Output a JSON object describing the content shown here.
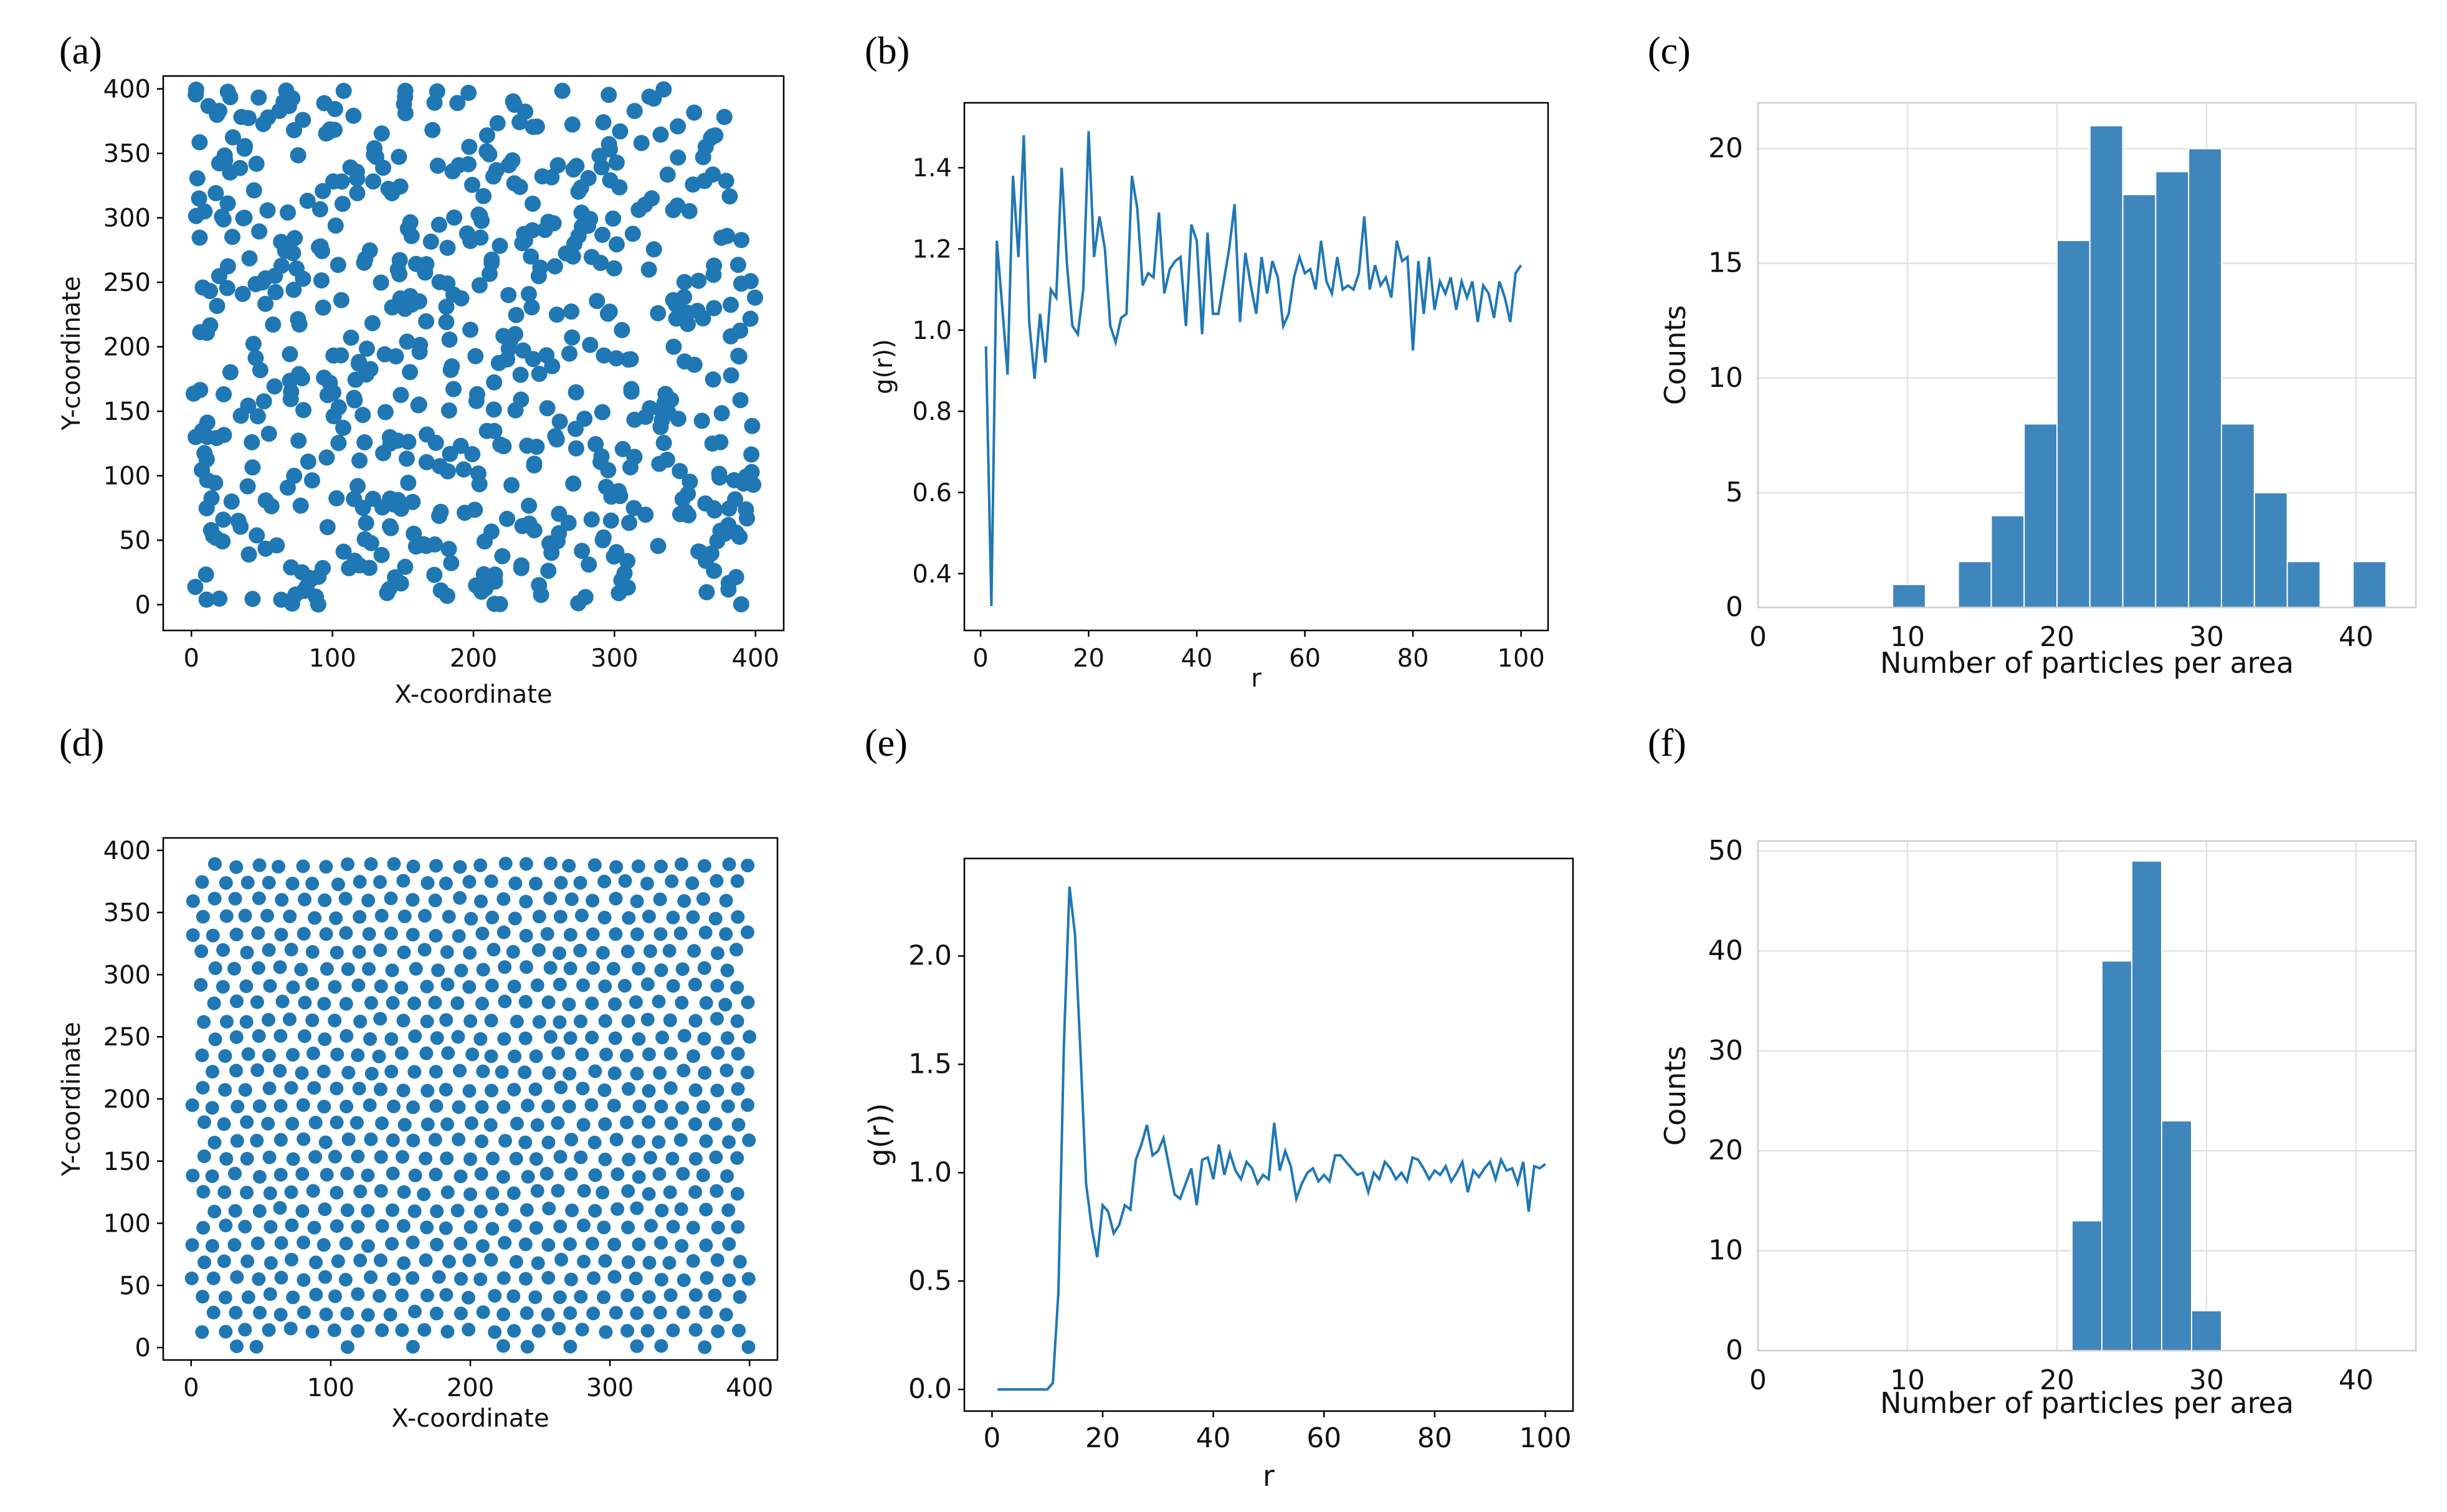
{
  "panels": {
    "a": {
      "label": "(a)"
    },
    "b": {
      "label": "(b)"
    },
    "c": {
      "label": "(c)"
    },
    "d": {
      "label": "(d)"
    },
    "e": {
      "label": "(e)"
    },
    "f": {
      "label": "(f)"
    }
  },
  "chart_data": [
    {
      "id": "a",
      "type": "scatter",
      "xlabel": "X-coordinate",
      "ylabel": "Y-coordinate",
      "xlim": [
        -20,
        420
      ],
      "ylim": [
        -20,
        410
      ],
      "xticks": [
        0,
        100,
        200,
        300,
        400
      ],
      "yticks": [
        0,
        50,
        100,
        150,
        200,
        250,
        300,
        350,
        400
      ],
      "distribution": "random (Poisson)",
      "n_points": 640,
      "point_color": "#1f77b4"
    },
    {
      "id": "b",
      "type": "line",
      "xlabel": "r",
      "ylabel": "g(r))",
      "xlim": [
        -3,
        105
      ],
      "ylim": [
        0.26,
        1.56
      ],
      "xticks": [
        0,
        20,
        40,
        60,
        80,
        100
      ],
      "yticks": [
        0.4,
        0.6,
        0.8,
        1.0,
        1.2,
        1.4
      ],
      "x": [
        1,
        2,
        3,
        4,
        5,
        6,
        7,
        8,
        9,
        10,
        11,
        12,
        13,
        14,
        15,
        16,
        17,
        18,
        19,
        20,
        21,
        22,
        23,
        24,
        25,
        26,
        27,
        28,
        29,
        30,
        31,
        32,
        33,
        34,
        35,
        36,
        37,
        38,
        39,
        40,
        41,
        42,
        43,
        44,
        45,
        46,
        47,
        48,
        49,
        50,
        51,
        52,
        53,
        54,
        55,
        56,
        57,
        58,
        59,
        60,
        61,
        62,
        63,
        64,
        65,
        66,
        67,
        68,
        69,
        70,
        71,
        72,
        73,
        74,
        75,
        76,
        77,
        78,
        79,
        80,
        81,
        82,
        83,
        84,
        85,
        86,
        87,
        88,
        89,
        90,
        91,
        92,
        93,
        94,
        95,
        96,
        97,
        98,
        99,
        100
      ],
      "y": [
        0.96,
        0.32,
        1.22,
        1.06,
        0.89,
        1.38,
        1.18,
        1.48,
        1.02,
        0.88,
        1.04,
        0.92,
        1.1,
        1.08,
        1.4,
        1.16,
        1.01,
        0.99,
        1.1,
        1.49,
        1.18,
        1.28,
        1.2,
        1.01,
        0.97,
        1.03,
        1.04,
        1.38,
        1.3,
        1.11,
        1.14,
        1.13,
        1.29,
        1.09,
        1.15,
        1.17,
        1.18,
        1.01,
        1.26,
        1.22,
        0.99,
        1.24,
        1.04,
        1.04,
        1.12,
        1.2,
        1.31,
        1.02,
        1.19,
        1.11,
        1.04,
        1.18,
        1.09,
        1.17,
        1.13,
        1.01,
        1.04,
        1.13,
        1.18,
        1.14,
        1.15,
        1.1,
        1.22,
        1.12,
        1.09,
        1.18,
        1.1,
        1.11,
        1.1,
        1.14,
        1.28,
        1.1,
        1.16,
        1.11,
        1.13,
        1.08,
        1.22,
        1.17,
        1.18,
        0.95,
        1.17,
        1.04,
        1.18,
        1.05,
        1.12,
        1.09,
        1.13,
        1.05,
        1.12,
        1.08,
        1.12,
        1.02,
        1.11,
        1.09,
        1.03,
        1.12,
        1.08,
        1.02,
        1.14,
        1.16
      ]
    },
    {
      "id": "c",
      "type": "bar",
      "xlabel": "Number of particles per area",
      "ylabel": "Counts",
      "xlim": [
        0,
        44
      ],
      "ylim": [
        0,
        22
      ],
      "xticks": [
        0,
        10,
        20,
        30,
        40
      ],
      "yticks": [
        0,
        5,
        10,
        15,
        20
      ],
      "bin_width": 2.2,
      "bin_starts": [
        9,
        13.4,
        15.6,
        17.8,
        20,
        22.2,
        24.4,
        26.6,
        28.8,
        31,
        33.2,
        35.4,
        39.8
      ],
      "values": [
        1,
        2,
        4,
        8,
        16,
        21,
        18,
        19,
        20,
        8,
        5,
        2,
        2
      ]
    },
    {
      "id": "d",
      "type": "scatter",
      "xlabel": "X-coordinate",
      "ylabel": "Y-coordinate",
      "xlim": [
        -20,
        420
      ],
      "ylim": [
        -10,
        410
      ],
      "xticks": [
        0,
        100,
        200,
        300,
        400
      ],
      "yticks": [
        0,
        50,
        100,
        150,
        200,
        250,
        300,
        350,
        400
      ],
      "distribution": "near-hexagonal (ordered)",
      "spacing": 16,
      "point_color": "#1f77b4"
    },
    {
      "id": "e",
      "type": "line",
      "xlabel": "r",
      "ylabel": "g(r))",
      "xlim": [
        -5,
        105
      ],
      "ylim": [
        -0.1,
        2.45
      ],
      "xticks": [
        0,
        20,
        40,
        60,
        80,
        100
      ],
      "yticks": [
        0.0,
        0.5,
        1.0,
        1.5,
        2.0
      ],
      "x": [
        1,
        2,
        3,
        4,
        5,
        6,
        7,
        8,
        9,
        10,
        11,
        12,
        13,
        14,
        15,
        16,
        17,
        18,
        19,
        20,
        21,
        22,
        23,
        24,
        25,
        26,
        27,
        28,
        29,
        30,
        31,
        32,
        33,
        34,
        35,
        36,
        37,
        38,
        39,
        40,
        41,
        42,
        43,
        44,
        45,
        46,
        47,
        48,
        49,
        50,
        51,
        52,
        53,
        54,
        55,
        56,
        57,
        58,
        59,
        60,
        61,
        62,
        63,
        64,
        65,
        66,
        67,
        68,
        69,
        70,
        71,
        72,
        73,
        74,
        75,
        76,
        77,
        78,
        79,
        80,
        81,
        82,
        83,
        84,
        85,
        86,
        87,
        88,
        89,
        90,
        91,
        92,
        93,
        94,
        95,
        96,
        97,
        98,
        99,
        100
      ],
      "y": [
        0,
        0,
        0,
        0,
        0,
        0,
        0,
        0,
        0,
        0,
        0.03,
        0.45,
        1.6,
        2.32,
        2.1,
        1.55,
        0.95,
        0.75,
        0.61,
        0.85,
        0.82,
        0.72,
        0.76,
        0.85,
        0.83,
        1.06,
        1.13,
        1.22,
        1.08,
        1.1,
        1.16,
        1.03,
        0.9,
        0.88,
        0.95,
        1.02,
        0.85,
        1.06,
        1.07,
        0.97,
        1.13,
        0.99,
        1.09,
        1.01,
        0.97,
        1.05,
        1.02,
        0.95,
        0.99,
        0.97,
        1.23,
        1.01,
        1.1,
        1.03,
        0.88,
        0.95,
        1.0,
        1.02,
        0.96,
        0.99,
        0.96,
        1.08,
        1.08,
        1.05,
        1.02,
        0.99,
        1.0,
        0.91,
        1.0,
        0.97,
        1.05,
        1.02,
        0.97,
        1.0,
        0.96,
        1.07,
        1.06,
        1.02,
        0.97,
        1.01,
        0.99,
        1.03,
        0.96,
        1.0,
        1.05,
        0.91,
        1.01,
        0.98,
        1.02,
        1.05,
        0.97,
        1.06,
        1.01,
        1.02,
        0.95,
        1.05,
        0.82,
        1.03,
        1.02,
        1.04
      ]
    },
    {
      "id": "f",
      "type": "bar",
      "xlabel": "Number of particles per area",
      "ylabel": "Counts",
      "xlim": [
        0,
        44
      ],
      "ylim": [
        0,
        51
      ],
      "xticks": [
        0,
        10,
        20,
        30,
        40
      ],
      "yticks": [
        0,
        10,
        20,
        30,
        40,
        50
      ],
      "bin_width": 2,
      "bin_starts": [
        21,
        23,
        25,
        27,
        29
      ],
      "values": [
        13,
        39,
        49,
        23,
        4
      ]
    }
  ]
}
